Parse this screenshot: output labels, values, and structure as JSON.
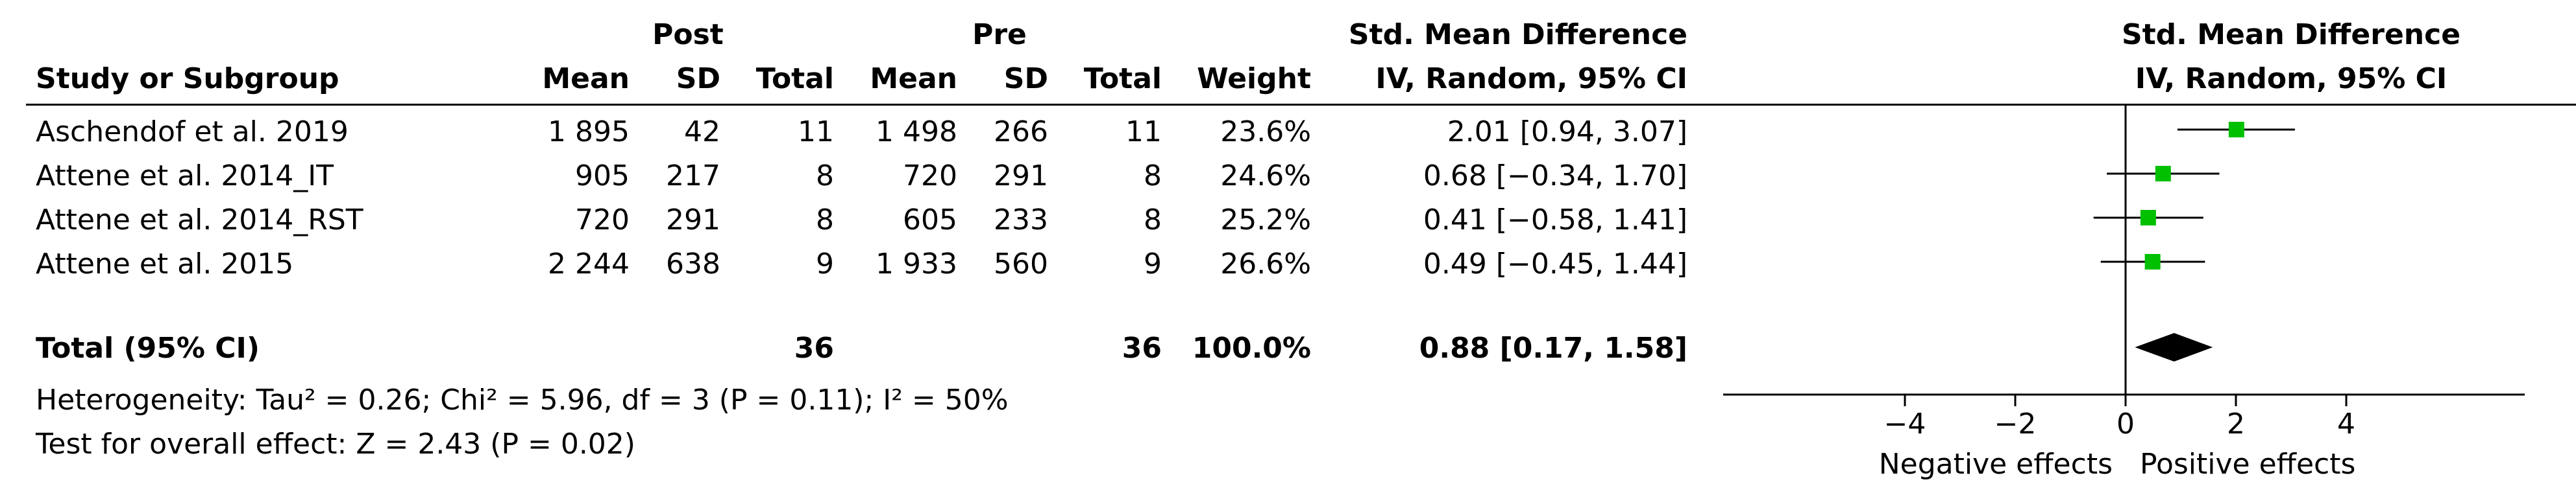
{
  "header": {
    "post": "Post",
    "pre": "Pre",
    "smd_title": "Std. Mean Difference",
    "smd_method": "IV, Random, 95% CI",
    "plot_title": "Std. Mean Difference",
    "plot_method": "IV, Random, 95% CI",
    "study": "Study or Subgroup",
    "mean1": "Mean",
    "sd1": "SD",
    "total1": "Total",
    "mean2": "Mean",
    "sd2": "SD",
    "total2": "Total",
    "weight": "Weight"
  },
  "rows": [
    {
      "study": "Aschendof et al. 2019",
      "post_mean": "1 895",
      "post_sd": "42",
      "post_total": "11",
      "pre_mean": "1 498",
      "pre_sd": "266",
      "pre_total": "11",
      "weight": "23.6%",
      "ci": "2.01 [0.94, 3.07]"
    },
    {
      "study": "Attene et al. 2014_IT",
      "post_mean": "905",
      "post_sd": "217",
      "post_total": "8",
      "pre_mean": "720",
      "pre_sd": "291",
      "pre_total": "8",
      "weight": "24.6%",
      "ci": "0.68 [−0.34, 1.70]"
    },
    {
      "study": "Attene et al. 2014_RST",
      "post_mean": "720",
      "post_sd": "291",
      "post_total": "8",
      "pre_mean": "605",
      "pre_sd": "233",
      "pre_total": "8",
      "weight": "25.2%",
      "ci": "0.41 [−0.58, 1.41]"
    },
    {
      "study": "Attene et al. 2015",
      "post_mean": "2 244",
      "post_sd": "638",
      "post_total": "9",
      "pre_mean": "1 933",
      "pre_sd": "560",
      "pre_total": "9",
      "weight": "26.6%",
      "ci": "0.49 [−0.45, 1.44]"
    }
  ],
  "total": {
    "label": "Total (95% CI)",
    "post_total": "36",
    "pre_total": "36",
    "weight": "100.0%",
    "ci": "0.88 [0.17, 1.58]"
  },
  "heterogeneity": "Heterogeneity: Tau² = 0.26; Chi² = 5.96, df = 3 (P = 0.11); I² = 50%",
  "overall_effect": "Test for overall effect: Z = 2.43 (P = 0.02)",
  "chart_data": {
    "type": "scatter",
    "subtype": "forest-plot",
    "title": "Std. Mean Difference",
    "subtitle": "IV, Random, 95% CI",
    "xlim": [
      -6,
      6
    ],
    "ticks": [
      -4,
      -2,
      0,
      2,
      4
    ],
    "tick_labels": [
      "−4",
      "−2",
      "0",
      "2",
      "4"
    ],
    "xlabel_left": "Negative effects",
    "xlabel_right": "Positive effects",
    "reference_line": 0,
    "marker_color": "#00c000",
    "points": [
      {
        "study": "Aschendof et al. 2019",
        "est": 2.01,
        "lo": 0.94,
        "hi": 3.07,
        "weight": 23.6
      },
      {
        "study": "Attene et al. 2014_IT",
        "est": 0.68,
        "lo": -0.34,
        "hi": 1.7,
        "weight": 24.6
      },
      {
        "study": "Attene et al. 2014_RST",
        "est": 0.41,
        "lo": -0.58,
        "hi": 1.41,
        "weight": 25.2
      },
      {
        "study": "Attene et al. 2015",
        "est": 0.49,
        "lo": -0.45,
        "hi": 1.44,
        "weight": 26.6
      }
    ],
    "pooled": {
      "est": 0.88,
      "lo": 0.17,
      "hi": 1.58
    }
  }
}
